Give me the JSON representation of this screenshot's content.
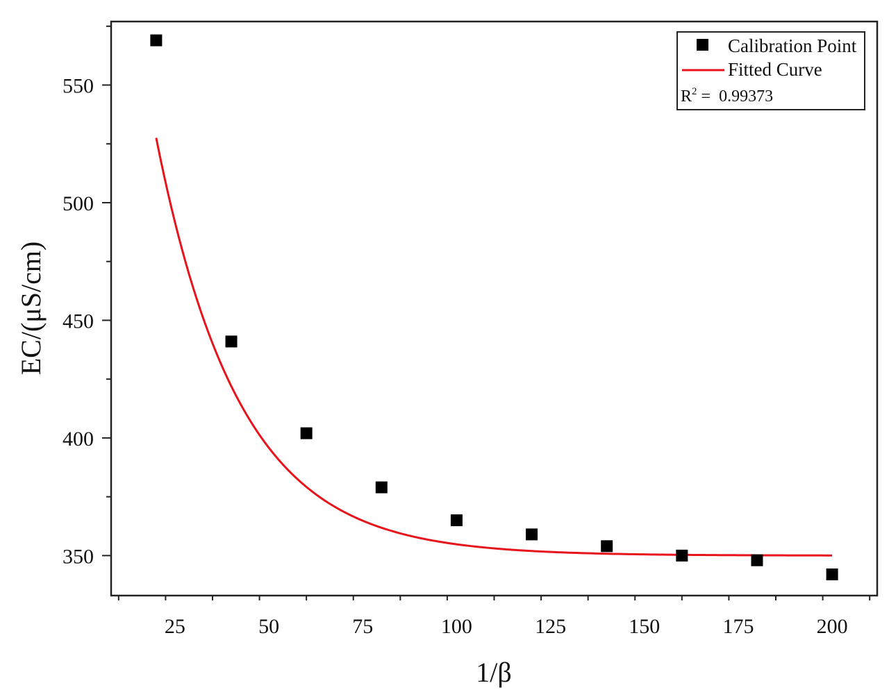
{
  "chart_data": {
    "type": "scatter",
    "title": "",
    "xlabel": "1/β",
    "ylabel": "EC/(μS/cm)",
    "xlim": [
      8,
      212
    ],
    "ylim": [
      333,
      577
    ],
    "xticks": [
      25,
      50,
      75,
      100,
      125,
      150,
      175,
      200
    ],
    "yticks": [
      350,
      400,
      450,
      500,
      550
    ],
    "grid": false,
    "legend_position": "top-right",
    "series": [
      {
        "name": "Calibration Point",
        "kind": "scatter",
        "marker": "square",
        "color": "#000000",
        "x": [
          20,
          40,
          60,
          80,
          100,
          120,
          140,
          160,
          180,
          200
        ],
        "y": [
          569,
          441,
          402,
          379,
          365,
          359,
          354,
          350,
          348,
          342
        ]
      },
      {
        "name": "Fitted Curve",
        "kind": "line",
        "color": "#e8141b",
        "model": "y = y0 + A*exp(-x/t)",
        "params": {
          "y0": 350,
          "A": 438,
          "t": 22.15
        },
        "x_range": [
          20,
          200
        ]
      }
    ],
    "annotation": {
      "r2_label": "R",
      "r2_sup": "2",
      "r2_eq": "=",
      "r2_value": "0.99373"
    }
  }
}
